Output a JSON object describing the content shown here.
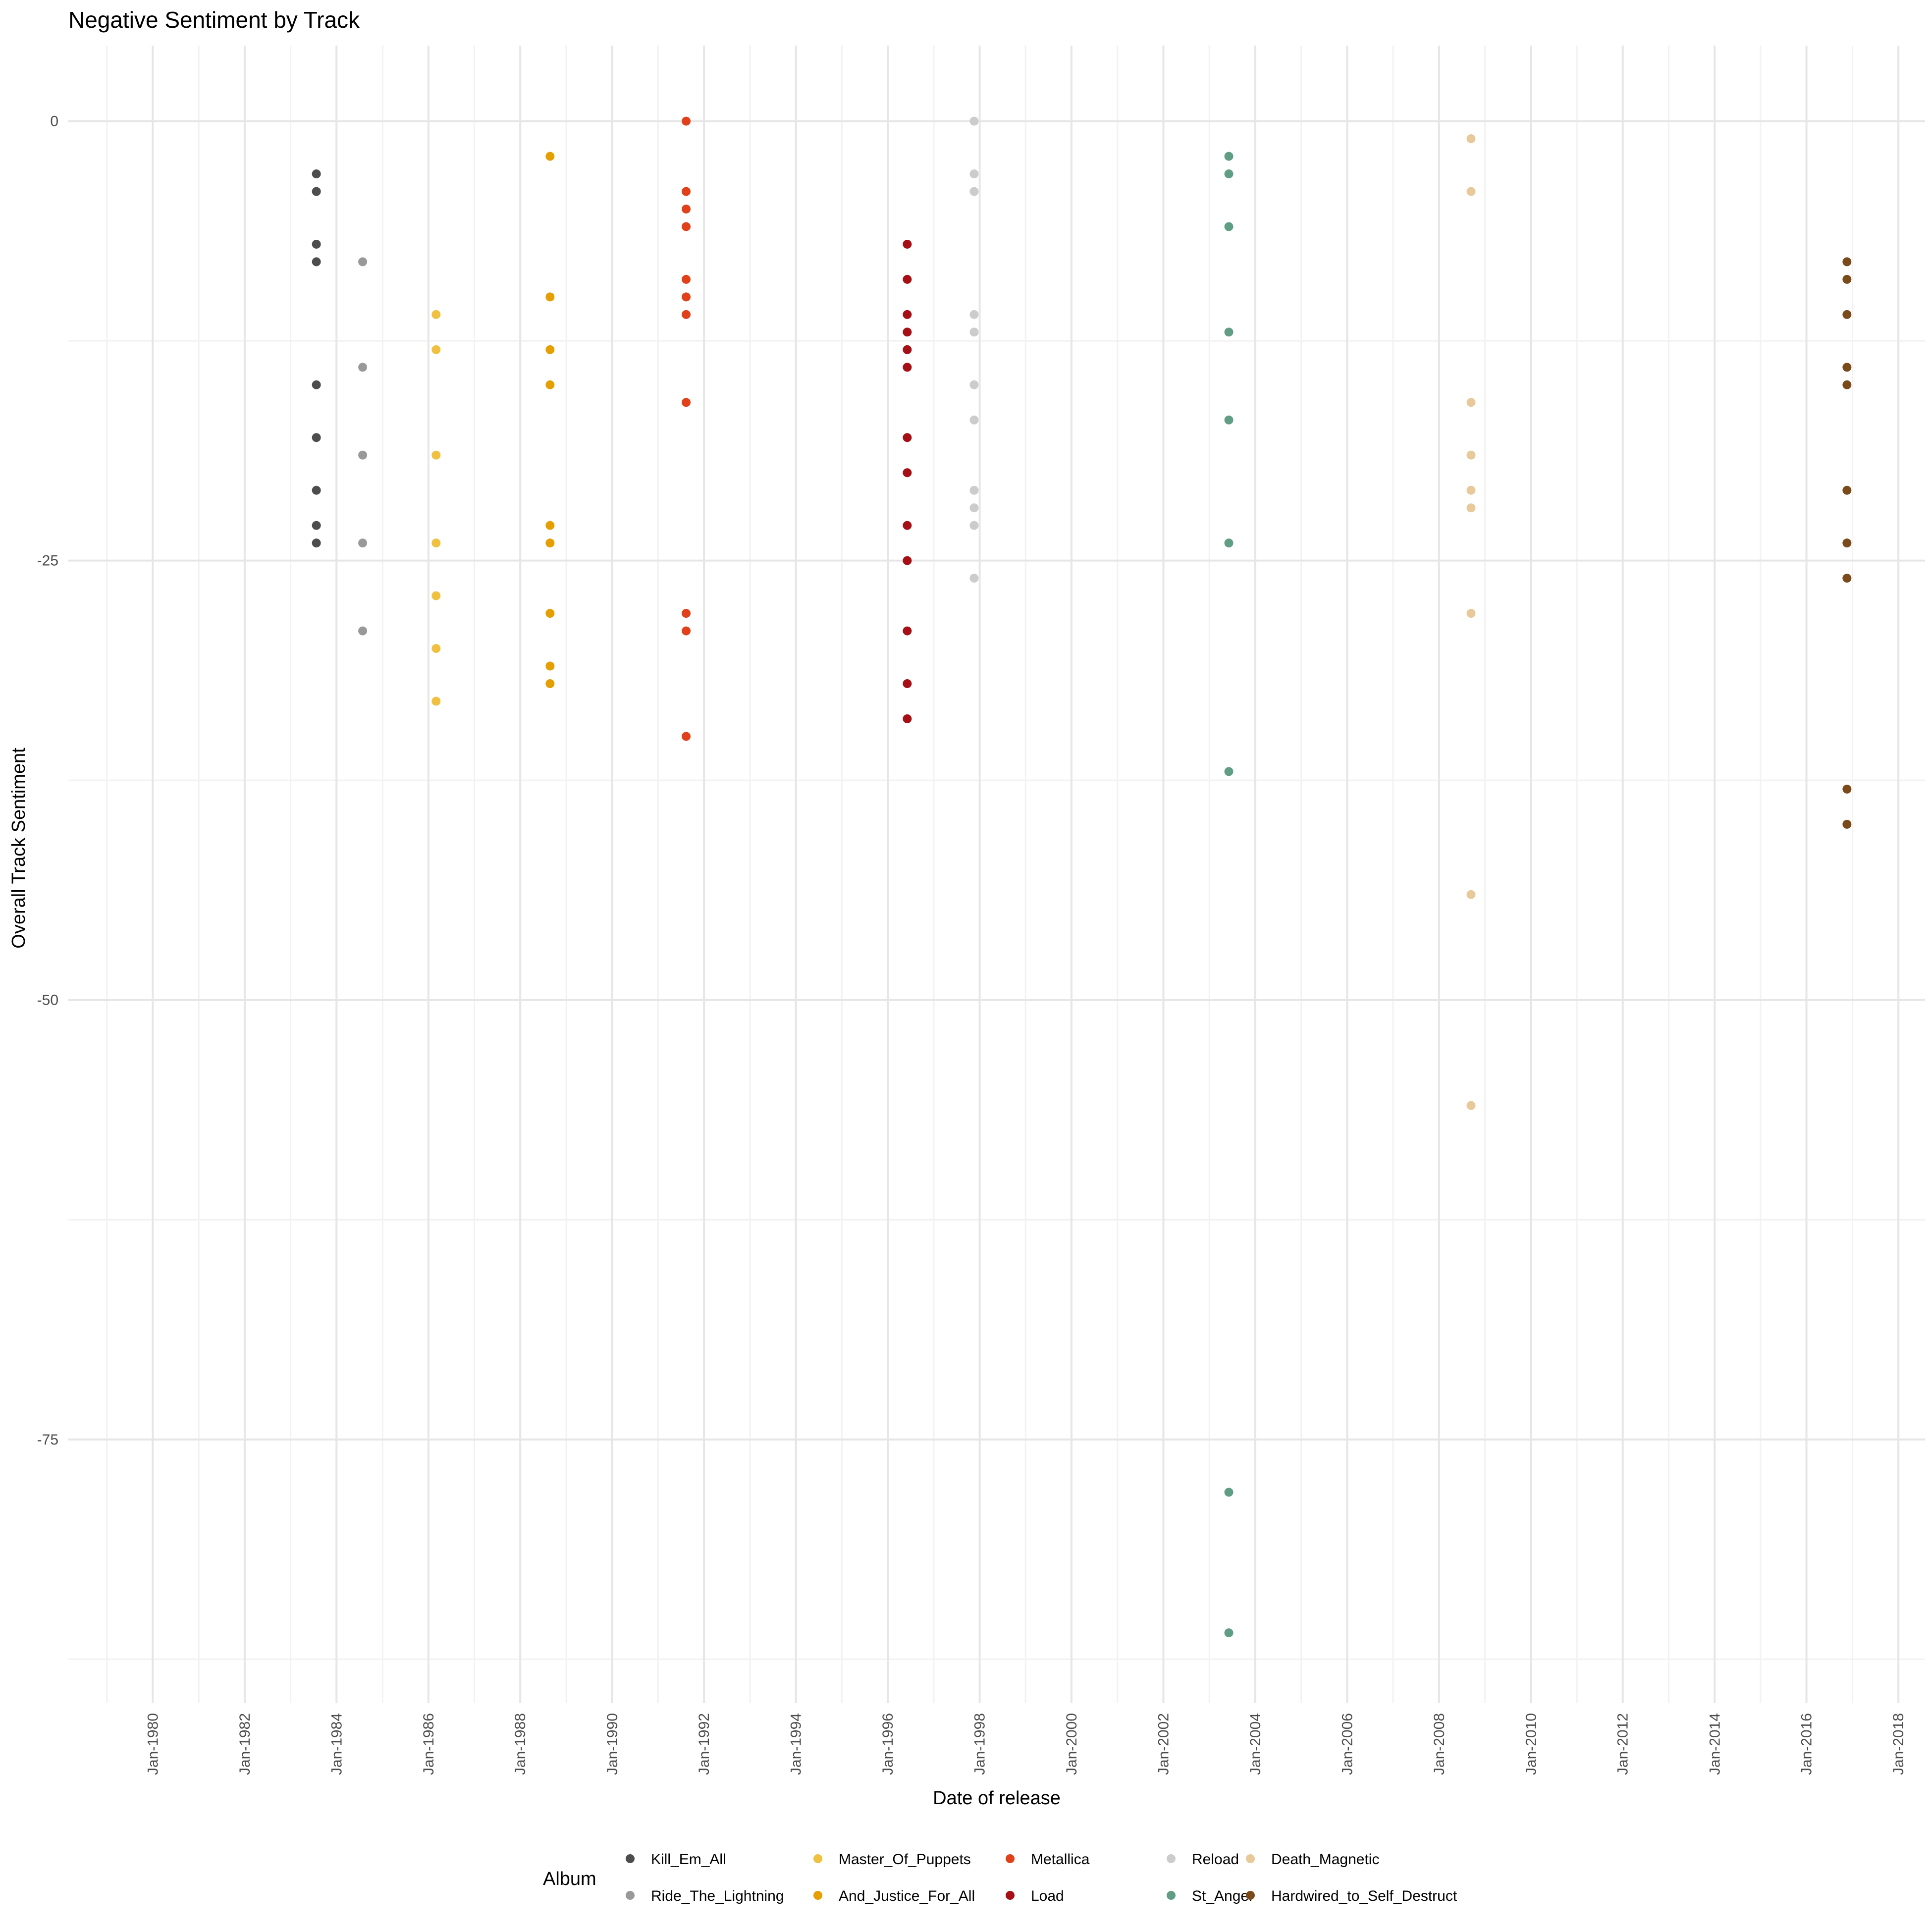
{
  "chart_data": {
    "type": "scatter",
    "title": "Negative Sentiment by Track",
    "xlabel": "Date of release",
    "ylabel": "Overall Track Sentiment",
    "x_ticks": [
      "Jan-1980",
      "Jan-1982",
      "Jan-1984",
      "Jan-1986",
      "Jan-1988",
      "Jan-1990",
      "Jan-1992",
      "Jan-1994",
      "Jan-1996",
      "Jan-1998",
      "Jan-2000",
      "Jan-2002",
      "Jan-2004",
      "Jan-2006",
      "Jan-2008",
      "Jan-2010",
      "Jan-2012",
      "Jan-2014",
      "Jan-2016",
      "Jan-2018"
    ],
    "y_ticks": [
      0,
      -25,
      -50,
      -75
    ],
    "xlim": [
      "1978-03-01",
      "2018-08-01"
    ],
    "ylim": [
      -90,
      4.3
    ],
    "grid": true,
    "legend_title": "Album",
    "legend_position": "bottom",
    "series": [
      {
        "name": "Kill_Em_All",
        "color": "#4d4d4d",
        "date": "1983-07-25",
        "values": [
          -3,
          -4,
          -7,
          -8,
          -15,
          -18,
          -21,
          -23,
          -24
        ]
      },
      {
        "name": "Ride_The_Lightning",
        "color": "#999999",
        "date": "1984-07-27",
        "values": [
          -8,
          -14,
          -19,
          -24,
          -29
        ]
      },
      {
        "name": "Master_Of_Puppets",
        "color": "#f0c040",
        "date": "1986-03-03",
        "values": [
          -11,
          -13,
          -19,
          -24,
          -27,
          -30,
          -33
        ]
      },
      {
        "name": "And_Justice_For_All",
        "color": "#e69f00",
        "date": "1988-08-25",
        "values": [
          -2,
          -10,
          -13,
          -15,
          -23,
          -24,
          -28,
          -31,
          -32
        ]
      },
      {
        "name": "Metallica",
        "color": "#e0401a",
        "date": "1991-08-12",
        "values": [
          0,
          -4,
          -5,
          -6,
          -9,
          -10,
          -11,
          -16,
          -28,
          -29,
          -35
        ]
      },
      {
        "name": "Load",
        "color": "#a50f15",
        "date": "1996-06-04",
        "values": [
          -7,
          -9,
          -11,
          -12,
          -13,
          -14,
          -18,
          -20,
          -23,
          -25,
          -29,
          -32,
          -34
        ]
      },
      {
        "name": "Reload",
        "color": "#cccccc",
        "date": "1997-11-18",
        "values": [
          0,
          -3,
          -4,
          -11,
          -12,
          -15,
          -17,
          -21,
          -22,
          -23,
          -26
        ]
      },
      {
        "name": "St_Anger",
        "color": "#5f9e85",
        "date": "2003-06-05",
        "values": [
          -2,
          -3,
          -6,
          -12,
          -17,
          -24,
          -37,
          -78,
          -86
        ]
      },
      {
        "name": "Death_Magnetic",
        "color": "#e8c99a",
        "date": "2008-09-12",
        "values": [
          -1,
          -4,
          -16,
          -19,
          -21,
          -22,
          -28,
          -44,
          -56
        ]
      },
      {
        "name": "Hardwired_to_Self_Destruct",
        "color": "#7a4a1a",
        "date": "2016-11-18",
        "values": [
          -8,
          -9,
          -11,
          -14,
          -15,
          -21,
          -24,
          -26,
          -38,
          -40
        ]
      }
    ]
  }
}
